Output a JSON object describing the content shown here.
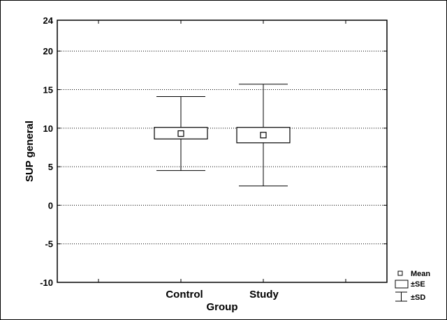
{
  "chart_data": {
    "type": "box",
    "xlabel": "Group",
    "ylabel": "SUP general",
    "ylim": [
      -10,
      24
    ],
    "yticks": [
      "24",
      "20",
      "15",
      "10",
      "5",
      "0",
      "-5",
      "-10"
    ],
    "ytick_values": [
      24,
      20,
      15,
      10,
      5,
      0,
      -5,
      -10
    ],
    "grid": "horizontal dotted",
    "legend_position": "bottom-right",
    "categories": [
      "Control",
      "Study"
    ],
    "series": [
      {
        "category": "Control",
        "mean": 9.3,
        "se_low": 8.6,
        "se_high": 10.1,
        "sd_low": 4.5,
        "sd_high": 14.1
      },
      {
        "category": "Study",
        "mean": 9.1,
        "se_low": 8.1,
        "se_high": 10.1,
        "sd_low": 2.5,
        "sd_high": 15.7
      }
    ],
    "legend": {
      "mean": "Mean",
      "se": "±SE",
      "sd": "±SD"
    }
  }
}
